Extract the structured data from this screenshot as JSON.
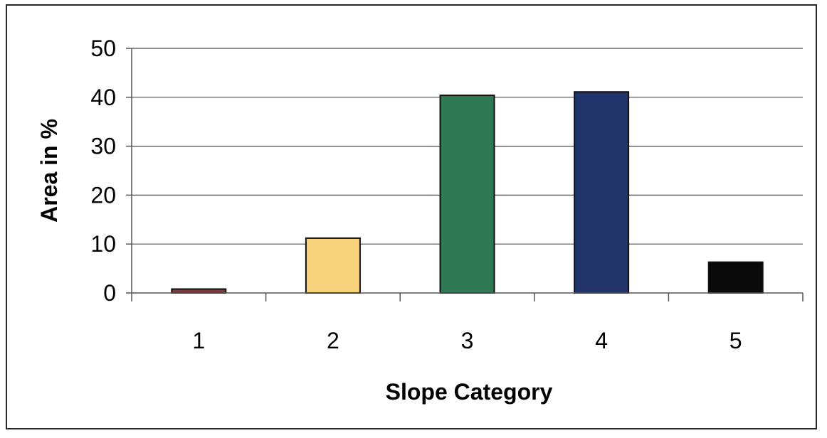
{
  "chart_data": {
    "type": "bar",
    "categories": [
      "1",
      "2",
      "3",
      "4",
      "5"
    ],
    "values": [
      0.8,
      11.2,
      40.4,
      41.1,
      6.3
    ],
    "xlabel": "Slope Category",
    "ylabel": "Area in %",
    "ylim": [
      0,
      50
    ],
    "yticks": [
      "0",
      "10",
      "20",
      "30",
      "40",
      "50"
    ],
    "grid": true,
    "legend": "none",
    "bar_colors": [
      "#7a3b3b",
      "#f9d27c",
      "#2f7a55",
      "#22356a",
      "#0a0a0a"
    ]
  }
}
